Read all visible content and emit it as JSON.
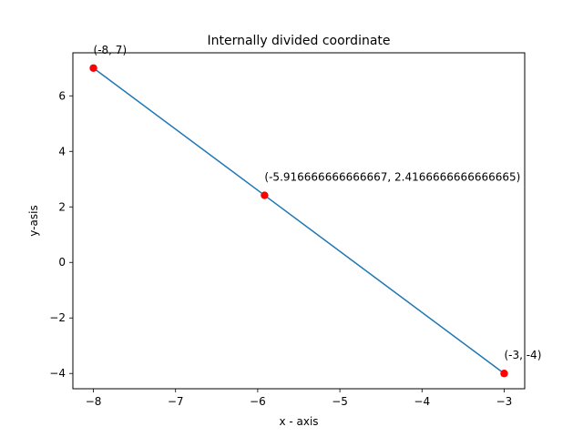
{
  "chart_data": {
    "type": "line",
    "title": "Internally divided coordinate",
    "xlabel": "x - axis",
    "ylabel": "y-asis",
    "xlim": [
      -8.25,
      -2.75
    ],
    "ylim": [
      -4.55,
      7.55
    ],
    "grid": false,
    "series": [
      {
        "x": [
          -8,
          -5.916666666666667,
          -3
        ],
        "y": [
          7,
          2.4166666666666665,
          -4
        ],
        "line_color": "#1f77b4",
        "marker_color": "#ff0000"
      }
    ],
    "points": [
      {
        "x": -8,
        "y": 7,
        "label": "(-8, 7)"
      },
      {
        "x": -5.916666666666667,
        "y": 2.4166666666666665,
        "label": "(-5.916666666666667, 2.4166666666666665)"
      },
      {
        "x": -3,
        "y": -4,
        "label": "(-3, -4)"
      }
    ],
    "xticks": [
      {
        "value": -8,
        "label": "−8"
      },
      {
        "value": -7,
        "label": "−7"
      },
      {
        "value": -6,
        "label": "−6"
      },
      {
        "value": -5,
        "label": "−5"
      },
      {
        "value": -4,
        "label": "−4"
      },
      {
        "value": -3,
        "label": "−3"
      }
    ],
    "yticks": [
      {
        "value": -4,
        "label": "−4"
      },
      {
        "value": -2,
        "label": "−2"
      },
      {
        "value": 0,
        "label": "0"
      },
      {
        "value": 2,
        "label": "2"
      },
      {
        "value": 4,
        "label": "4"
      },
      {
        "value": 6,
        "label": "6"
      }
    ]
  }
}
